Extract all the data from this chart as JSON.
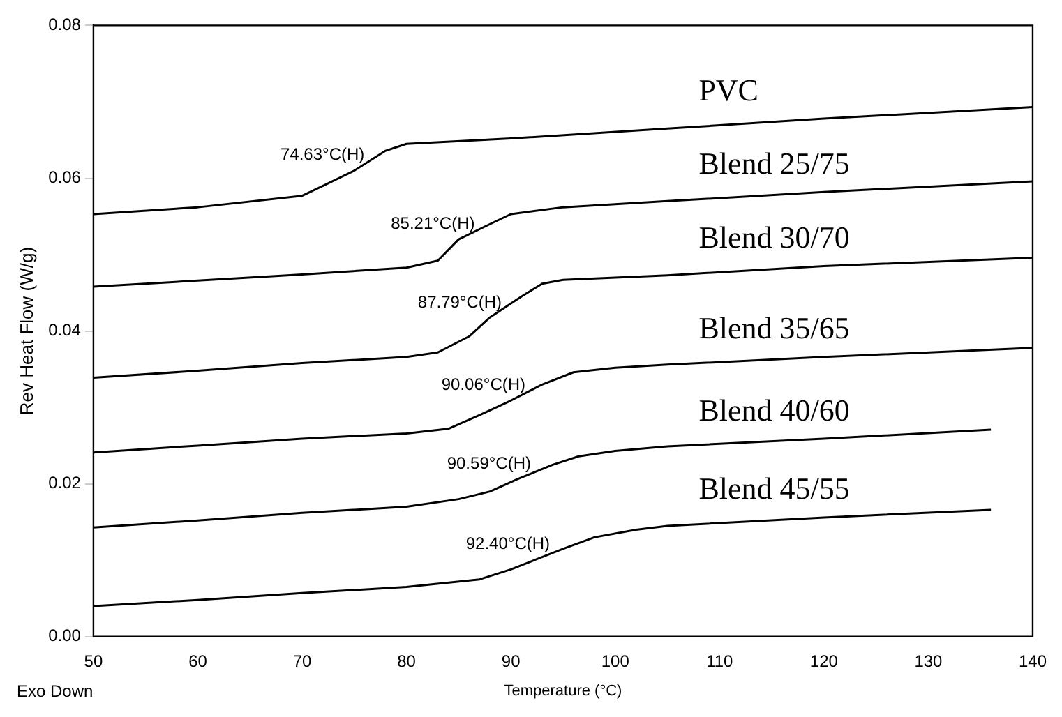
{
  "chart_data": {
    "type": "line",
    "xlabel": "Temperature (°C)",
    "ylabel": "Rev Heat Flow (W/g)",
    "xlim": [
      50,
      140
    ],
    "xticks": [
      50,
      60,
      70,
      80,
      90,
      100,
      110,
      120,
      130,
      140
    ],
    "ylim": [
      0,
      0.08
    ],
    "yticks": [
      {
        "value": 0,
        "label": "0.00"
      },
      {
        "value": 0.02,
        "label": "0.02"
      },
      {
        "value": 0.04,
        "label": "0.04"
      },
      {
        "value": 0.06,
        "label": "0.06"
      },
      {
        "value": 0.08,
        "label": "0.08"
      }
    ],
    "grid": false,
    "legend": false,
    "marker": "none",
    "line_style": "solid",
    "series": [
      {
        "name": "PVC",
        "color": "#000000",
        "x": [
          50,
          60,
          70,
          72,
          75,
          78,
          80,
          90,
          105,
          120,
          140
        ],
        "values": [
          0.0553,
          0.0562,
          0.0577,
          0.059,
          0.061,
          0.0636,
          0.0645,
          0.0652,
          0.0665,
          0.0678,
          0.0693
        ]
      },
      {
        "name": "Blend 25/75",
        "color": "#000000",
        "x": [
          50,
          60,
          70,
          80,
          83,
          85,
          88,
          90,
          95,
          105,
          120,
          140
        ],
        "values": [
          0.0458,
          0.0466,
          0.0474,
          0.0483,
          0.0492,
          0.052,
          0.054,
          0.0553,
          0.0562,
          0.057,
          0.0582,
          0.0596
        ]
      },
      {
        "name": "Blend 30/70",
        "color": "#000000",
        "x": [
          50,
          60,
          70,
          80,
          83,
          86,
          88,
          91,
          93,
          95,
          105,
          120,
          140
        ],
        "values": [
          0.0339,
          0.0348,
          0.0358,
          0.0366,
          0.0372,
          0.0393,
          0.0418,
          0.0445,
          0.0462,
          0.0467,
          0.0473,
          0.0485,
          0.0496
        ]
      },
      {
        "name": "Blend 35/65",
        "color": "#000000",
        "x": [
          50,
          60,
          70,
          80,
          84,
          87,
          90,
          93,
          96,
          100,
          105,
          120,
          140
        ],
        "values": [
          0.0241,
          0.025,
          0.0259,
          0.0266,
          0.0272,
          0.029,
          0.0309,
          0.033,
          0.0346,
          0.0352,
          0.0356,
          0.0366,
          0.0378
        ]
      },
      {
        "name": "Blend 40/60",
        "color": "#000000",
        "x": [
          50,
          60,
          70,
          80,
          85,
          88,
          90.6,
          94,
          96.5,
          100,
          105,
          120,
          136
        ],
        "values": [
          0.0143,
          0.0152,
          0.0162,
          0.017,
          0.018,
          0.019,
          0.0206,
          0.0225,
          0.0236,
          0.0243,
          0.0249,
          0.0259,
          0.0271
        ]
      },
      {
        "name": "Blend 45/55",
        "color": "#000000",
        "x": [
          50,
          60,
          70,
          80,
          87,
          90,
          92.4,
          95,
          98,
          102,
          105,
          120,
          136
        ],
        "values": [
          0.004,
          0.0048,
          0.0057,
          0.0065,
          0.0075,
          0.0088,
          0.0101,
          0.0115,
          0.013,
          0.014,
          0.0145,
          0.0156,
          0.0166
        ]
      }
    ],
    "annotations": [
      {
        "text": "74.63°C(H)",
        "x": 74.63,
        "y": 0.061
      },
      {
        "text": "85.21°C(H)",
        "x": 85.21,
        "y": 0.052
      },
      {
        "text": "87.79°C(H)",
        "x": 87.79,
        "y": 0.0417
      },
      {
        "text": "90.06°C(H)",
        "x": 90.06,
        "y": 0.0309
      },
      {
        "text": "90.59°C(H)",
        "x": 90.59,
        "y": 0.0206
      },
      {
        "text": "92.40°C(H)",
        "x": 92.4,
        "y": 0.0101
      },
      "Exo Down"
    ]
  }
}
